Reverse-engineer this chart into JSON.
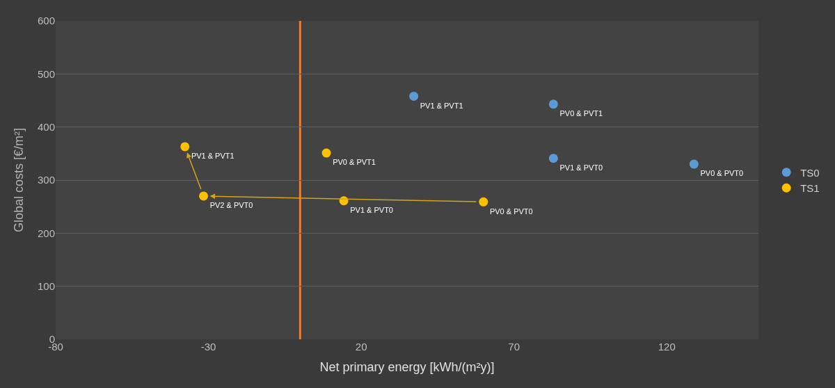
{
  "chart_data": {
    "type": "scatter",
    "xlabel": "Net primary energy [kWh/(m²y)]",
    "ylabel": "Global costs [€/m²]",
    "xlim": [
      -80,
      150
    ],
    "xticks": [
      -80,
      -30,
      20,
      70,
      120
    ],
    "ylim": [
      0,
      600
    ],
    "yticks": [
      0,
      100,
      200,
      300,
      400,
      500,
      600
    ],
    "grid": "y",
    "legend": "right",
    "marker": "circle",
    "series": [
      {
        "name": "TS0",
        "color": "#5b9bd5",
        "x": [
          37.2,
          82.9,
          82.9,
          128.9
        ],
        "values": [
          458,
          443,
          341,
          330
        ],
        "value_labels": [
          "PV1 & PVT1",
          "PV0 & PVT1",
          "PV1 & PVT0",
          "PV0 & PVT0"
        ]
      },
      {
        "name": "TS1",
        "color": "#ffc000",
        "x": [
          -37.7,
          -31.6,
          8.6,
          14.3,
          60.0
        ],
        "values": [
          363,
          270,
          351,
          261,
          259
        ],
        "value_labels": [
          "PV1 & PVT1",
          "PV2 & PVT0",
          "PV0 & PVT1",
          "PV1 & PVT0",
          "PV0 & PVT0"
        ]
      }
    ],
    "ref_lines": [
      {
        "axis": "x",
        "value": 0,
        "label": null,
        "color": "#ed7d31"
      }
    ]
  }
}
